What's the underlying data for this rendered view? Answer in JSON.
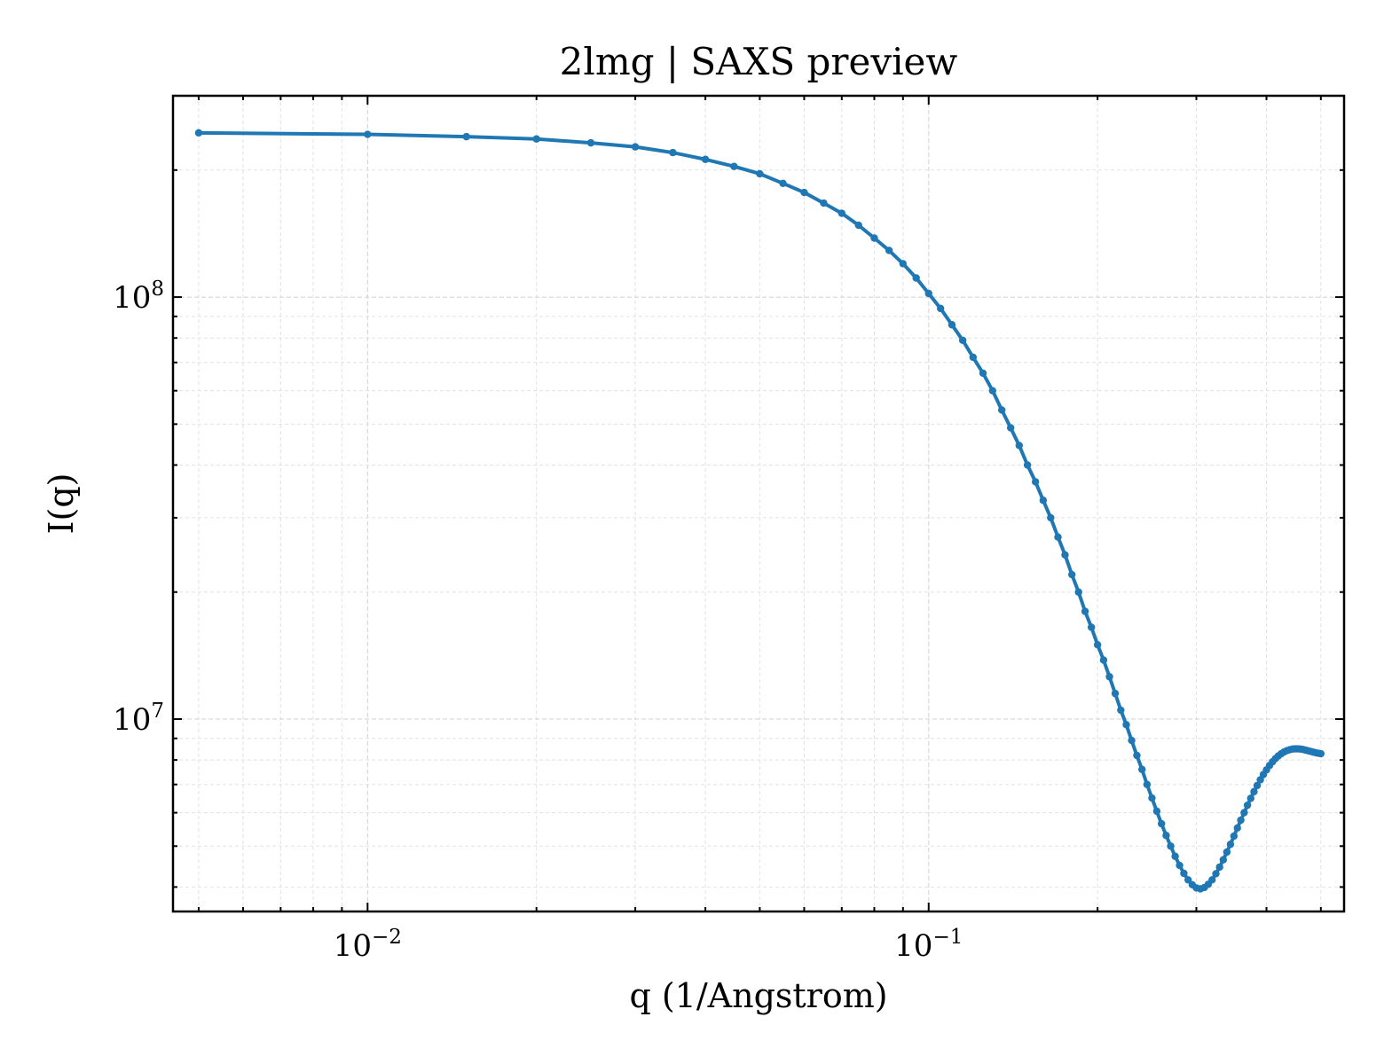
{
  "chart_data": {
    "type": "line",
    "title": "2lmg | SAXS preview",
    "xlabel": "q (1/Angstrom)",
    "ylabel": "I(q)",
    "xscale": "log",
    "yscale": "log",
    "xlim": [
      0.0045,
      0.55
    ],
    "ylim": [
      3500000,
      300000000
    ],
    "grid": true,
    "legend": "none",
    "x_ticks": [
      {
        "value": 0.01,
        "base": "10",
        "exp": "−2"
      },
      {
        "value": 0.1,
        "base": "10",
        "exp": "−1"
      }
    ],
    "y_ticks": [
      {
        "value": 10000000,
        "base": "10",
        "exp": "7"
      },
      {
        "value": 100000000,
        "base": "10",
        "exp": "8"
      }
    ],
    "colors": {
      "series": "#1f77b4"
    },
    "series": [
      {
        "marker": "dot",
        "x": [
          0.005,
          0.01,
          0.015,
          0.02,
          0.025,
          0.03,
          0.035,
          0.04,
          0.045,
          0.05,
          0.055,
          0.06,
          0.065,
          0.07,
          0.075,
          0.08,
          0.085,
          0.09,
          0.095,
          0.1,
          0.105,
          0.11,
          0.115,
          0.12,
          0.125,
          0.13,
          0.135,
          0.14,
          0.145,
          0.15,
          0.155,
          0.16,
          0.165,
          0.17,
          0.175,
          0.18,
          0.185,
          0.19,
          0.195,
          0.2,
          0.205,
          0.21,
          0.215,
          0.22,
          0.225,
          0.23,
          0.235,
          0.24,
          0.245,
          0.25,
          0.255,
          0.26,
          0.265,
          0.27,
          0.275,
          0.28,
          0.285,
          0.29,
          0.295,
          0.3,
          0.305,
          0.31,
          0.315,
          0.32,
          0.325,
          0.33,
          0.335,
          0.34,
          0.345,
          0.35,
          0.355,
          0.36,
          0.365,
          0.37,
          0.375,
          0.38,
          0.385,
          0.39,
          0.395,
          0.4,
          0.405,
          0.41,
          0.415,
          0.42,
          0.425,
          0.43,
          0.435,
          0.44,
          0.445,
          0.45,
          0.455,
          0.46,
          0.465,
          0.47,
          0.475,
          0.48,
          0.485,
          0.49,
          0.495,
          0.5
        ],
        "y": [
          245000000,
          243000000,
          240000000,
          237000000,
          232000000,
          227000000,
          220000000,
          212000000,
          204000000,
          196000000,
          186000000,
          177000000,
          167000000,
          158000000,
          148000000,
          138000000,
          129000000,
          120000000,
          111000000,
          102000000,
          94000000,
          86000000,
          79000000,
          72000000,
          66000000,
          60000000,
          54000000,
          49000000,
          44500000,
          40000000,
          36500000,
          33000000,
          30000000,
          27000000,
          24500000,
          22000000,
          20000000,
          18000000,
          16500000,
          15000000,
          13800000,
          12600000,
          11500000,
          10500000,
          9700000,
          8900000,
          8200000,
          7600000,
          7000000,
          6500000,
          6050000,
          5650000,
          5300000,
          5000000,
          4730000,
          4500000,
          4310000,
          4160000,
          4050000,
          3980000,
          3960000,
          3990000,
          4060000,
          4160000,
          4300000,
          4460000,
          4640000,
          4840000,
          5050000,
          5280000,
          5520000,
          5760000,
          6000000,
          6250000,
          6490000,
          6730000,
          6960000,
          7180000,
          7390000,
          7580000,
          7760000,
          7920000,
          8060000,
          8180000,
          8280000,
          8360000,
          8420000,
          8460000,
          8490000,
          8500000,
          8500000,
          8490000,
          8470000,
          8440000,
          8410000,
          8380000,
          8350000,
          8320000,
          8300000,
          8280000
        ]
      }
    ]
  }
}
